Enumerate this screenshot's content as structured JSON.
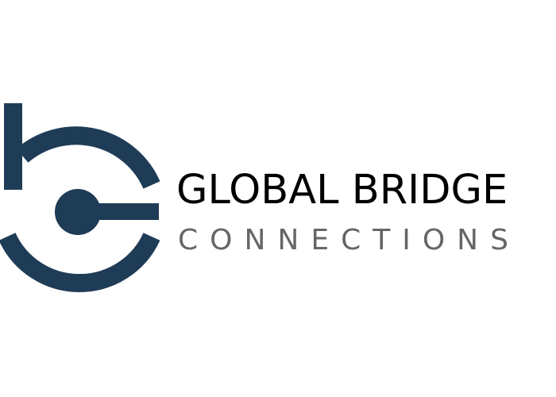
{
  "logo": {
    "brand_name": "GLOBAL BRIDGE",
    "brand_subline": "CONNECTIONS",
    "mark_icon": "stylized-b-bridge-icon",
    "colors": {
      "mark": "#1f3c57",
      "brand_name": "#000000",
      "brand_subline": "#666666",
      "background": "#ffffff"
    }
  }
}
